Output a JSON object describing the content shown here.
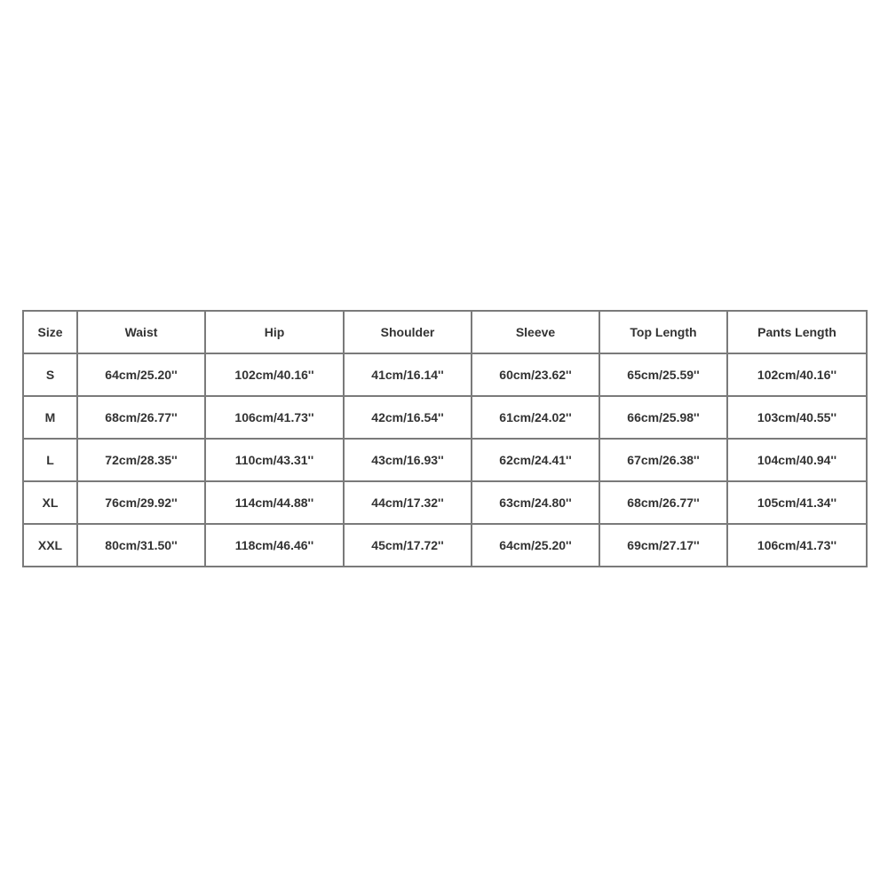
{
  "size_chart": {
    "headers": [
      "Size",
      "Waist",
      "Hip",
      "Shoulder",
      "Sleeve",
      "Top Length",
      "Pants Length"
    ],
    "rows": [
      [
        "S",
        "64cm/25.20''",
        "102cm/40.16''",
        "41cm/16.14''",
        "60cm/23.62''",
        "65cm/25.59''",
        "102cm/40.16''"
      ],
      [
        "M",
        "68cm/26.77''",
        "106cm/41.73''",
        "42cm/16.54''",
        "61cm/24.02''",
        "66cm/25.98''",
        "103cm/40.55''"
      ],
      [
        "L",
        "72cm/28.35''",
        "110cm/43.31''",
        "43cm/16.93''",
        "62cm/24.41''",
        "67cm/26.38''",
        "104cm/40.94''"
      ],
      [
        "XL",
        "76cm/29.92''",
        "114cm/44.88''",
        "44cm/17.32''",
        "63cm/24.80''",
        "68cm/26.77''",
        "105cm/41.34''"
      ],
      [
        "XXL",
        "80cm/31.50''",
        "118cm/46.46''",
        "45cm/17.72''",
        "64cm/25.20''",
        "69cm/27.17''",
        "106cm/41.73''"
      ]
    ]
  }
}
